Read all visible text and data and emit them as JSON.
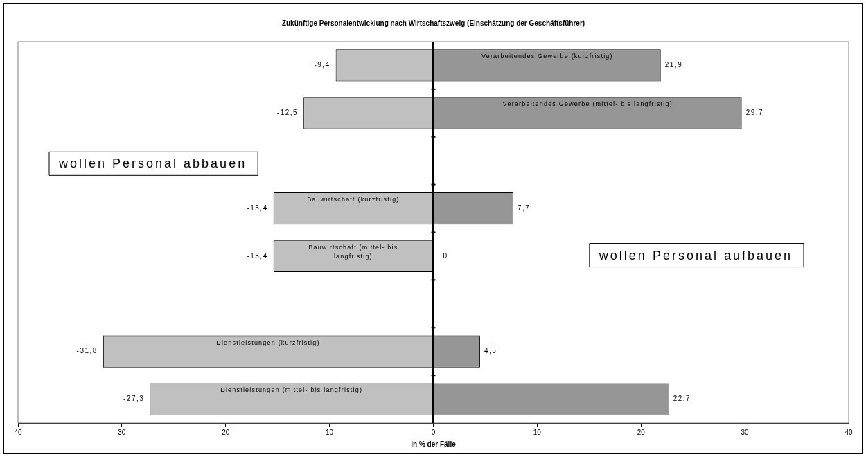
{
  "chart_data": {
    "type": "bar",
    "orientation": "horizontal",
    "stacked": true,
    "title": "Zukünftige Personalentwicklung nach Wirtschaftszweig (Einschätzung der Geschäftsführer)",
    "xlabel": "in % der Fälle",
    "categories": [
      "Verarbeitendes Gewerbe (kurzfristig)",
      "Verarbeitendes Gewerbe (mittel- bis langfristig)",
      null,
      "Bauwirtschaft (kurzfristig)",
      "Bauwirtschaft (mittel- bis langfristig)",
      null,
      "Dienstleistungen (kurzfristig)",
      "Dienstleistungen (mittel- bis langfristig)"
    ],
    "series": [
      {
        "color": "#c0c0c0",
        "values": [
          -9.4,
          -12.5,
          null,
          -15.4,
          -15.4,
          null,
          -31.8,
          -27.3
        ],
        "value_labels": [
          "-9,4",
          "-12,5",
          null,
          "-15,4",
          "-15,4",
          null,
          "-31,8",
          "-27,3"
        ]
      },
      {
        "color": "#969696",
        "values": [
          21.9,
          29.7,
          null,
          7.7,
          0,
          null,
          4.5,
          22.7
        ],
        "value_labels": [
          "21,9",
          "29,7",
          null,
          "7,7",
          "0",
          null,
          "4,5",
          "22,7"
        ]
      }
    ],
    "xlim": [
      -40,
      40
    ],
    "xticks": [
      {
        "value": -40,
        "label": "40"
      },
      {
        "value": -30,
        "label": "30"
      },
      {
        "value": -20,
        "label": "20"
      },
      {
        "value": -10,
        "label": "10"
      },
      0,
      10,
      20,
      30,
      40
    ],
    "annotations": [
      "wollen Personal abbauen",
      "wollen Personal aufbauen"
    ],
    "legend": false
  }
}
